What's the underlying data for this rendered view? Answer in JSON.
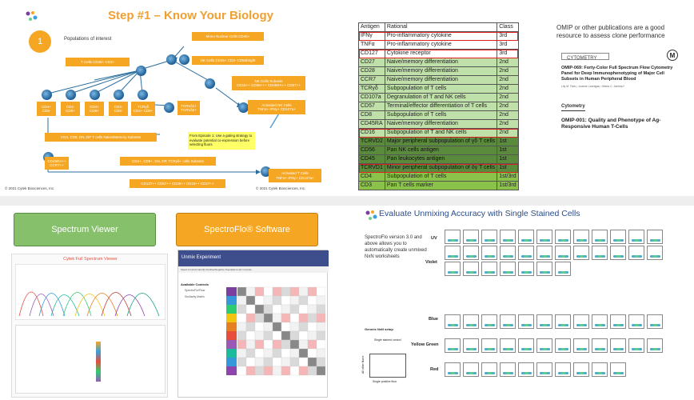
{
  "q1": {
    "title": "Step #1 – Know Your Biology",
    "step_number": "1",
    "populations_label": "Populations of interest",
    "boxes": {
      "mnc": "Mono Nuclear Cells CD45+",
      "tcells": "T Cells CD45+ CD3+",
      "nkcells": "NK Cells CD45+ CD3- CD56bright",
      "nksubsets": "NK Cells Subsets\nCD16++ CD56+++ CD45RA++ CD57++",
      "cd4cd8": "CD4+\nCD8-",
      "cd4cd8b": "CD4-\nCD8+",
      "cd4pos": "CD4+\nCD8+",
      "cd4neg": "CD4-\nCD8-",
      "tcrgd": "TCRγδ\nCD4+ CD8+",
      "tcrvd": "TCRVδ1+\nTCRVδ2+",
      "activated_nk": "Activated NK Cells\nTNFα+ IFNγ+ CD107a+",
      "cd4cd8_line": "CD4, CD8, DN, DP T cells Naive/Memory Subsets",
      "cd45ra": "CD45RA++\nCCR7++",
      "cd4_ifng": "CD4+, CD8+, DN, DP, TCRγδ+ cells Subsets",
      "cd127": "CD127++ CD57++ CD28++ CD16++ CD27++",
      "activated_t": "Activated T Cells\nTNFα+ IFNγ+ CD107a+"
    },
    "note": "From Episode 1: Use a gating strategy to evaluate potential co-expression before selecting fluors",
    "copyright_left": "© 2021 Cytek Biosciences, Inc.",
    "copyright_right": "© 2021 Cytek Biosciences, Inc."
  },
  "q2": {
    "headers": [
      "Antigen",
      "Rational",
      "Class"
    ],
    "rows": [
      {
        "antigen": "IFNγ",
        "rational": "Pro-inflammatory cytokine",
        "class": "3rd",
        "tier": "r3"
      },
      {
        "antigen": "TNFα",
        "rational": "Pro-inflammatory cytokine",
        "class": "3rd",
        "tier": "r3"
      },
      {
        "antigen": "CD127",
        "rational": "Cytokine receptor",
        "class": "3rd",
        "tier": "r3"
      },
      {
        "antigen": "CD27",
        "rational": "Naive/memory differentiation",
        "class": "2nd",
        "tier": "r2"
      },
      {
        "antigen": "CD28",
        "rational": "Naive/memory differentiation",
        "class": "2nd",
        "tier": "r2"
      },
      {
        "antigen": "CCR7",
        "rational": "Naive/memory differentiation",
        "class": "2nd",
        "tier": "r2"
      },
      {
        "antigen": "TCRγδ",
        "rational": "Subpopulation of T cells",
        "class": "2nd",
        "tier": "r2"
      },
      {
        "antigen": "CD107a",
        "rational": "Degranulation of T and NK cells",
        "class": "2nd",
        "tier": "r2"
      },
      {
        "antigen": "CD57",
        "rational": "Terminal/effector differentiation of T cells",
        "class": "2nd",
        "tier": "r2"
      },
      {
        "antigen": "CD8",
        "rational": "Subpopulation of T cells",
        "class": "2nd",
        "tier": "r2"
      },
      {
        "antigen": "CD45RA",
        "rational": "Naive/memory differentiation",
        "class": "2nd",
        "tier": "r2"
      },
      {
        "antigen": "CD16",
        "rational": "Subpopulation of T and NK cells",
        "class": "2nd",
        "tier": "r2"
      },
      {
        "antigen": "TCRVD2",
        "rational": "Major peripheral subpopulation of γδ T cells",
        "class": "1st",
        "tier": "r1"
      },
      {
        "antigen": "CD56",
        "rational": "Pan NK cells antigen",
        "class": "1st",
        "tier": "r1"
      },
      {
        "antigen": "CD45",
        "rational": "Pan leukocytes antigen",
        "class": "1st",
        "tier": "r1"
      },
      {
        "antigen": "TCRVD1",
        "rational": "Minor peripheral subpopulation of δγ T cells",
        "class": "1st",
        "tier": "r1"
      },
      {
        "antigen": "CD4",
        "rational": "Subpopulation of T cells",
        "class": "1st/3rd",
        "tier": "r13"
      },
      {
        "antigen": "CD3",
        "rational": "Pan T cells marker",
        "class": "1st/3rd",
        "tier": "r13"
      }
    ],
    "omip_text": "OMIP or other publications are a good resource to assess clone performance",
    "cytometry_logo": "CYTOMETRY",
    "paper1": "OMIP-069: Forty-Color Full Spectrum Flow Cytometry Panel for Deep Immunophenotyping of Major Cell Subsets in Human Peripheral Blood",
    "authors": "Lily M. Park,¹ Joanne Lannigan,² Maria C. Jaimes¹*",
    "cytometry2": "Cytometry",
    "paper2": "OMIP-001: Quality and Phenotype of Ag-Responsive Human T-Cells"
  },
  "q3": {
    "spectrum_viewer_label": "Spectrum Viewer",
    "spectroflo_label": "SpectroFlo® Software",
    "sv_title": "Cytek Full Spectrum Viewer",
    "sf_header": "Unmix Experiment",
    "sf_tabs": "Select Controls   Identify Positive/Negative Populations   QC Controls",
    "sf_list_title": "Available Controls",
    "sf_item1": "SpectroFlo/Flow",
    "sf_item2": "Similarity Matrix"
  },
  "q4": {
    "title": "Evaluate Unmixing Accuracy with Single Stained Cells",
    "description": "SpectroFlo version 3.0 and above allows you to automatically create unmixed NxN worksheets",
    "lasers": [
      "UV",
      "Violet",
      "Blue",
      "Yellow Green",
      "Red"
    ],
    "generic_label": "Generic NxN setup",
    "generic_sub": "Single stained control",
    "axis_x": "Single positive fluor",
    "axis_y": "All other fluors",
    "colors": {
      "accent": "#f5a623",
      "green": "#86c06a",
      "title_blue": "#2b4d8c"
    }
  }
}
